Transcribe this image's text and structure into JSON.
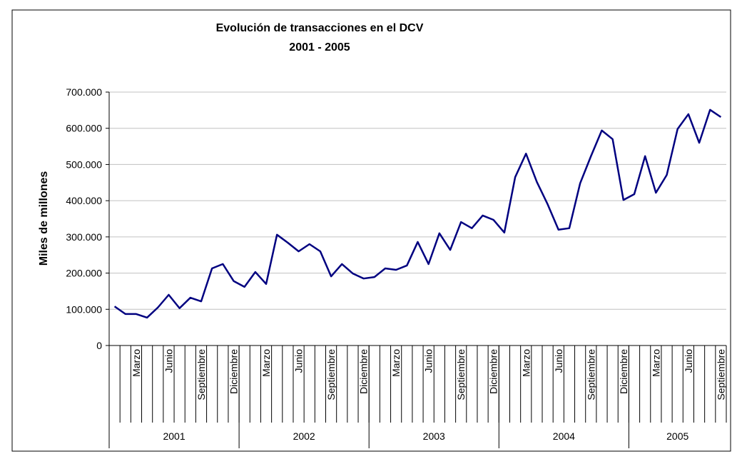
{
  "chart_data": {
    "type": "line",
    "title": "Evolución de transacciones en el DCV",
    "subtitle": "2001 - 2005",
    "y_label": "Miles de millones",
    "categories": [
      null,
      null,
      "Marzo",
      null,
      null,
      "Junio",
      null,
      null,
      "Septiembre",
      null,
      null,
      "Diciembre",
      null,
      null,
      "Marzo",
      null,
      null,
      "Junio",
      null,
      null,
      "Septiembre",
      null,
      null,
      "Diciembre",
      null,
      null,
      "Marzo",
      null,
      null,
      "Junio",
      null,
      null,
      "Septiembre",
      null,
      null,
      "Diciembre",
      null,
      null,
      "Marzo",
      null,
      null,
      "Junio",
      null,
      null,
      "Septiembre",
      null,
      null,
      "Diciembre",
      null,
      null,
      "Marzo",
      null,
      null,
      "Junio",
      null,
      null,
      "Septiembre"
    ],
    "groups": [
      {
        "label": "2001",
        "size": 12
      },
      {
        "label": "2002",
        "size": 12
      },
      {
        "label": "2003",
        "size": 12
      },
      {
        "label": "2004",
        "size": 12
      },
      {
        "label": "2005",
        "size": 9
      }
    ],
    "values": [
      108000,
      87000,
      87000,
      77000,
      105000,
      140000,
      103000,
      132000,
      122000,
      213000,
      225000,
      178000,
      162000,
      203000,
      170000,
      306000,
      284000,
      260000,
      280000,
      260000,
      191000,
      225000,
      199000,
      185000,
      189000,
      213000,
      209000,
      221000,
      286000,
      225000,
      310000,
      264000,
      341000,
      324000,
      359000,
      347000,
      312000,
      465000,
      530000,
      452000,
      390000,
      320000,
      324000,
      448000,
      523000,
      594000,
      570000,
      402000,
      418000,
      523000,
      422000,
      471000,
      598000,
      639000,
      560000,
      651000,
      631000
    ],
    "color": "#000080",
    "ylim": [
      0,
      700000
    ],
    "yticks": [
      0,
      {
        "value": 100000,
        "label": "100.000"
      },
      {
        "value": 200000,
        "label": "200.000"
      },
      {
        "value": 300000,
        "label": "300.000"
      },
      {
        "value": 400000,
        "label": "400.000"
      },
      {
        "value": 500000,
        "label": "500.000"
      },
      {
        "value": 600000,
        "label": "600.000"
      },
      {
        "value": 700000,
        "label": "700.000"
      }
    ],
    "grid": true
  }
}
